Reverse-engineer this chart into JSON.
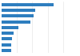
{
  "values": [
    34,
    22,
    21,
    19,
    11,
    8,
    7,
    6,
    6
  ],
  "bar_color": "#2e7ebf",
  "background_color": "#ffffff",
  "xlim": [
    0,
    50
  ],
  "bar_height": 0.55,
  "grid_color": "#e0e0e0",
  "grid_linewidth": 0.4
}
